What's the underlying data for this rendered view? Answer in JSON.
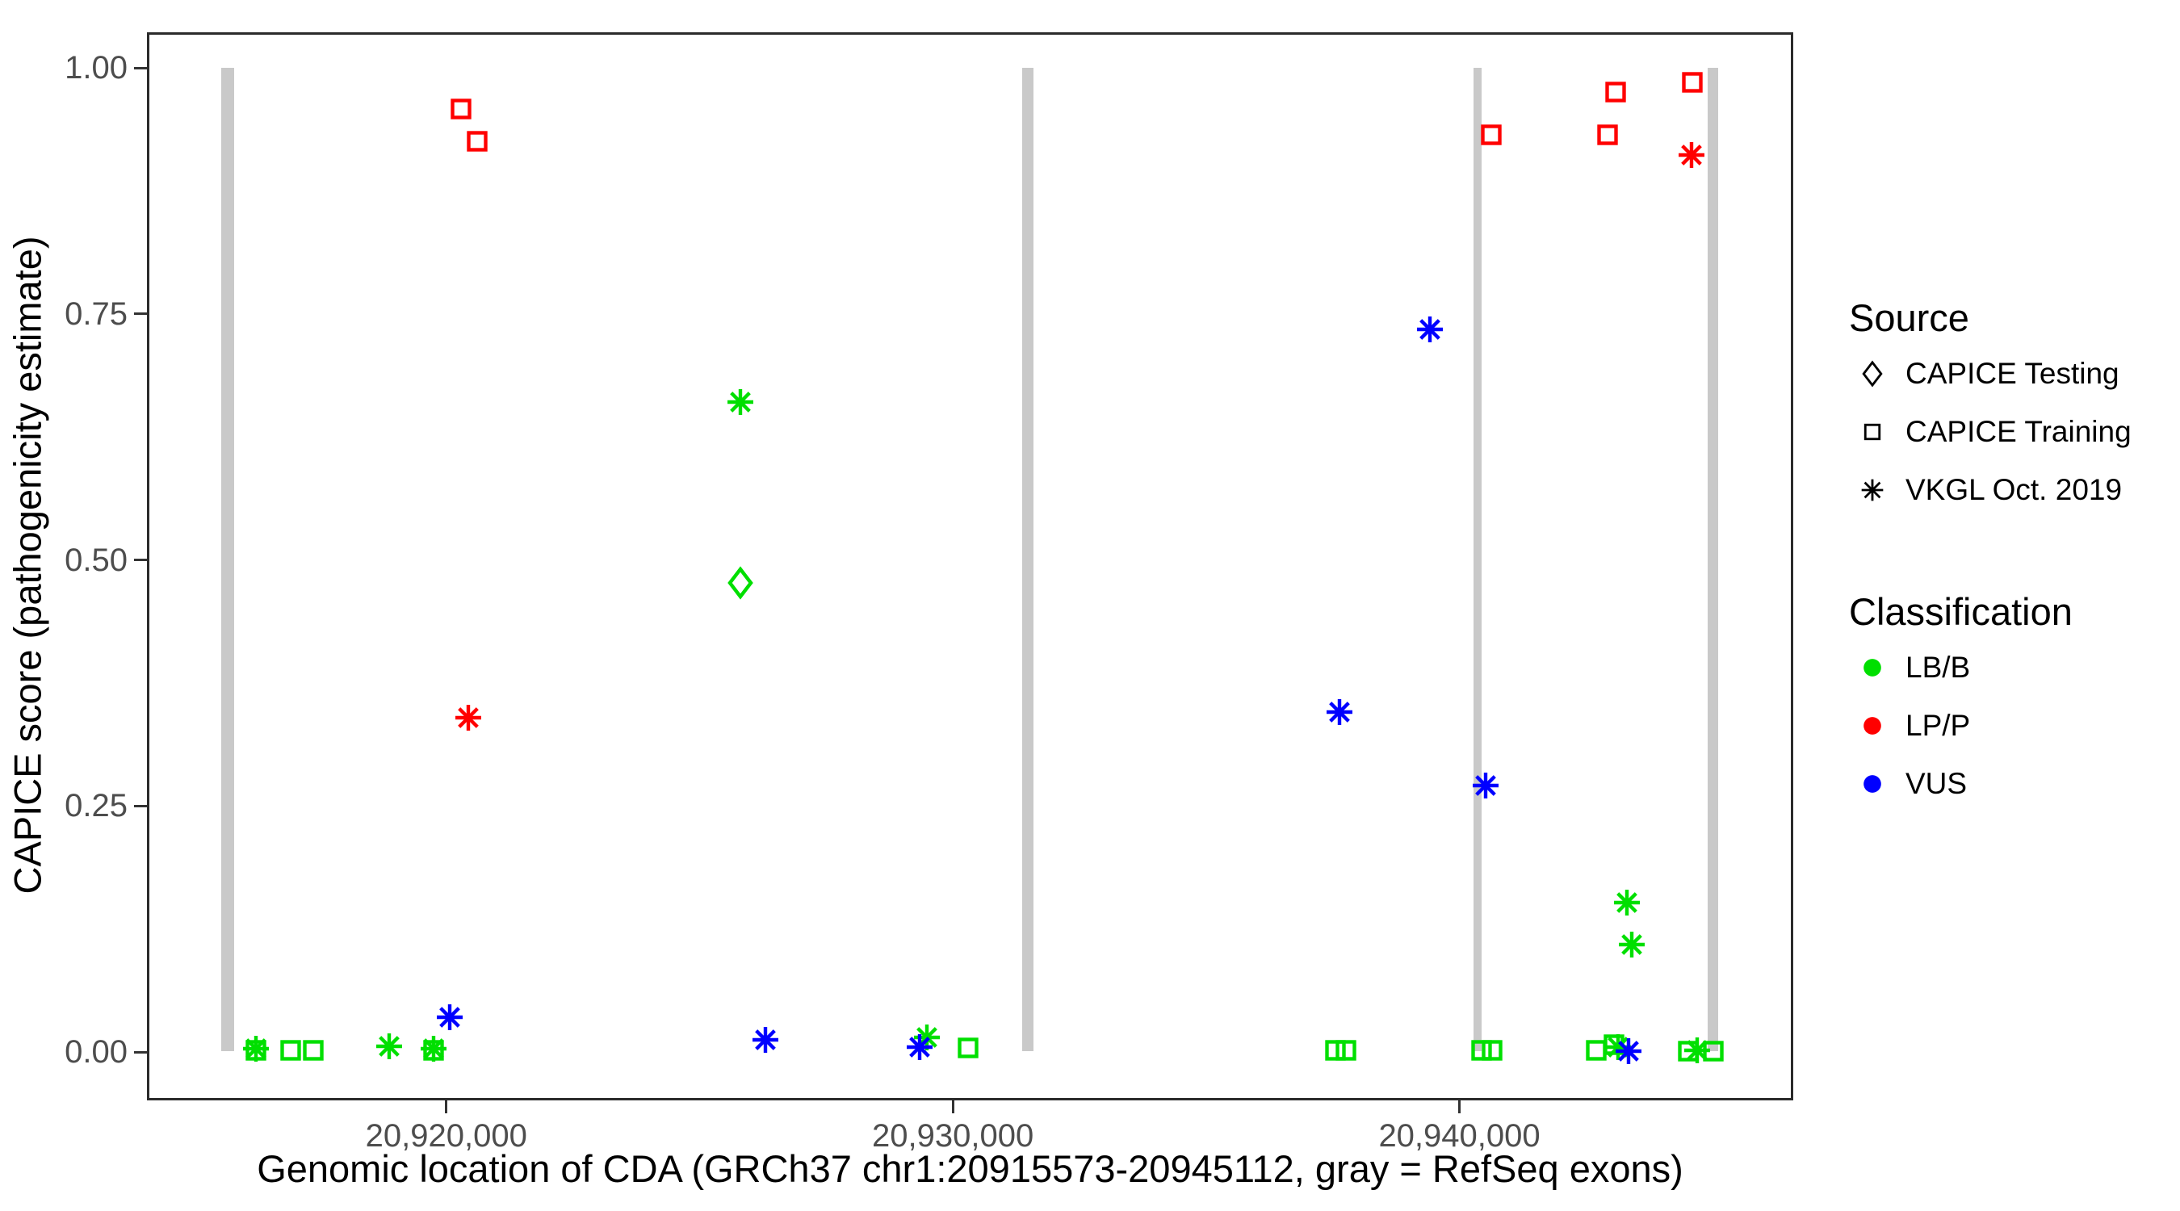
{
  "figure": {
    "background": "#FFFFFF",
    "x_axis_title": "Genomic location of CDA (GRCh37 chr1:20915573-20945112, gray = RefSeq exons)",
    "y_axis_title": "CAPICE score (pathogenicity estimate)"
  },
  "legend": {
    "source": {
      "title": "Source",
      "items": [
        {
          "label": "CAPICE Testing",
          "shape": "diamond"
        },
        {
          "label": "CAPICE Training",
          "shape": "square"
        },
        {
          "label": "VKGL Oct. 2019",
          "shape": "asterisk"
        }
      ]
    },
    "classification": {
      "title": "Classification",
      "items": [
        {
          "label": "LB/B",
          "color": "#00DF00"
        },
        {
          "label": "LP/P",
          "color": "#FF0000"
        },
        {
          "label": "VUS",
          "color": "#0000FF"
        }
      ]
    }
  },
  "chart_data": {
    "type": "scatter",
    "title": "",
    "xlabel": "Genomic location of CDA (GRCh37 chr1:20915573-20945112, gray = RefSeq exons)",
    "ylabel": "CAPICE score (pathogenicity estimate)",
    "gene_region": {
      "chromosome": "chr1",
      "start": 20915573,
      "end": 20945112,
      "assembly": "GRCh37",
      "gene": "CDA"
    },
    "xlim": [
      20914090,
      20946590
    ],
    "ylim": [
      -0.05,
      1.04
    ],
    "grid": false,
    "legend_position": "right",
    "x_ticks": [
      {
        "value": 20920000,
        "label": "20,920,000"
      },
      {
        "value": 20930000,
        "label": "20,930,000"
      },
      {
        "value": 20940000,
        "label": "20,940,000"
      }
    ],
    "y_ticks": [
      {
        "value": 0.0,
        "label": "0.00"
      },
      {
        "value": 0.25,
        "label": "0.25"
      },
      {
        "value": 0.5,
        "label": "0.50"
      },
      {
        "value": 0.75,
        "label": "0.75"
      },
      {
        "value": 1.0,
        "label": "1.00"
      }
    ],
    "exon_color": "#C9C9C9",
    "class_colors": {
      "LB/B": "#00DF00",
      "LP/P": "#FF0000",
      "VUS": "#0000FF"
    },
    "source_shapes": {
      "CAPICE Testing": "diamond",
      "CAPICE Training": "square",
      "VKGL Oct. 2019": "asterisk"
    },
    "exons": [
      [
        20915554,
        20915810
      ],
      [
        20931361,
        20931584
      ],
      [
        20940283,
        20940442
      ],
      [
        20944903,
        20945110
      ]
    ],
    "points": [
      {
        "bp": 20916239,
        "score": 0.002,
        "classification": "LB/B",
        "source": "CAPICE Training"
      },
      {
        "bp": 20916924,
        "score": 0.002,
        "classification": "LB/B",
        "source": "CAPICE Training"
      },
      {
        "bp": 20917370,
        "score": 0.002,
        "classification": "LB/B",
        "source": "CAPICE Training"
      },
      {
        "bp": 20919745,
        "score": 0.002,
        "classification": "LB/B",
        "source": "CAPICE Training"
      },
      {
        "bp": 20930308,
        "score": 0.004,
        "classification": "LB/B",
        "source": "CAPICE Training"
      },
      {
        "bp": 20937558,
        "score": 0.002,
        "classification": "LB/B",
        "source": "CAPICE Training"
      },
      {
        "bp": 20937765,
        "score": 0.002,
        "classification": "LB/B",
        "source": "CAPICE Training"
      },
      {
        "bp": 20940442,
        "score": 0.002,
        "classification": "LB/B",
        "source": "CAPICE Training"
      },
      {
        "bp": 20940649,
        "score": 0.002,
        "classification": "LB/B",
        "source": "CAPICE Training"
      },
      {
        "bp": 20942703,
        "score": 0.002,
        "classification": "LB/B",
        "source": "CAPICE Training"
      },
      {
        "bp": 20943053,
        "score": 0.007,
        "classification": "LB/B",
        "source": "CAPICE Training"
      },
      {
        "bp": 20944520,
        "score": 0.001,
        "classification": "LB/B",
        "source": "CAPICE Training"
      },
      {
        "bp": 20945014,
        "score": 0.001,
        "classification": "LB/B",
        "source": "CAPICE Training"
      },
      {
        "bp": 20920287,
        "score": 0.958,
        "classification": "LP/P",
        "source": "CAPICE Training"
      },
      {
        "bp": 20920605,
        "score": 0.925,
        "classification": "LP/P",
        "source": "CAPICE Training"
      },
      {
        "bp": 20940631,
        "score": 0.932,
        "classification": "LP/P",
        "source": "CAPICE Training"
      },
      {
        "bp": 20942926,
        "score": 0.932,
        "classification": "LP/P",
        "source": "CAPICE Training"
      },
      {
        "bp": 20943085,
        "score": 0.975,
        "classification": "LP/P",
        "source": "CAPICE Training"
      },
      {
        "bp": 20944599,
        "score": 0.985,
        "classification": "LP/P",
        "source": "CAPICE Training"
      },
      {
        "bp": 20925800,
        "score": 0.477,
        "classification": "LB/B",
        "source": "CAPICE Testing"
      },
      {
        "bp": 20916239,
        "score": 0.003,
        "classification": "LB/B",
        "source": "VKGL Oct. 2019"
      },
      {
        "bp": 20918869,
        "score": 0.006,
        "classification": "LB/B",
        "source": "VKGL Oct. 2019"
      },
      {
        "bp": 20919745,
        "score": 0.003,
        "classification": "LB/B",
        "source": "VKGL Oct. 2019"
      },
      {
        "bp": 20925800,
        "score": 0.66,
        "classification": "LB/B",
        "source": "VKGL Oct. 2019"
      },
      {
        "bp": 20929481,
        "score": 0.015,
        "classification": "LB/B",
        "source": "VKGL Oct. 2019"
      },
      {
        "bp": 20943132,
        "score": 0.005,
        "classification": "LB/B",
        "source": "VKGL Oct. 2019"
      },
      {
        "bp": 20943311,
        "score": 0.152,
        "classification": "LB/B",
        "source": "VKGL Oct. 2019"
      },
      {
        "bp": 20943407,
        "score": 0.109,
        "classification": "LB/B",
        "source": "VKGL Oct. 2019"
      },
      {
        "bp": 20944695,
        "score": 0.002,
        "classification": "LB/B",
        "source": "VKGL Oct. 2019"
      },
      {
        "bp": 20920430,
        "score": 0.34,
        "classification": "LP/P",
        "source": "VKGL Oct. 2019"
      },
      {
        "bp": 20944583,
        "score": 0.911,
        "classification": "LP/P",
        "source": "VKGL Oct. 2019"
      },
      {
        "bp": 20920064,
        "score": 0.035,
        "classification": "VUS",
        "source": "VKGL Oct. 2019"
      },
      {
        "bp": 20926294,
        "score": 0.012,
        "classification": "VUS",
        "source": "VKGL Oct. 2019"
      },
      {
        "bp": 20929338,
        "score": 0.005,
        "classification": "VUS",
        "source": "VKGL Oct. 2019"
      },
      {
        "bp": 20937639,
        "score": 0.345,
        "classification": "VUS",
        "source": "VKGL Oct. 2019"
      },
      {
        "bp": 20939423,
        "score": 0.734,
        "classification": "VUS",
        "source": "VKGL Oct. 2019"
      },
      {
        "bp": 20940522,
        "score": 0.271,
        "classification": "VUS",
        "source": "VKGL Oct. 2019"
      },
      {
        "bp": 20943343,
        "score": 0.001,
        "classification": "VUS",
        "source": "VKGL Oct. 2019"
      }
    ]
  }
}
